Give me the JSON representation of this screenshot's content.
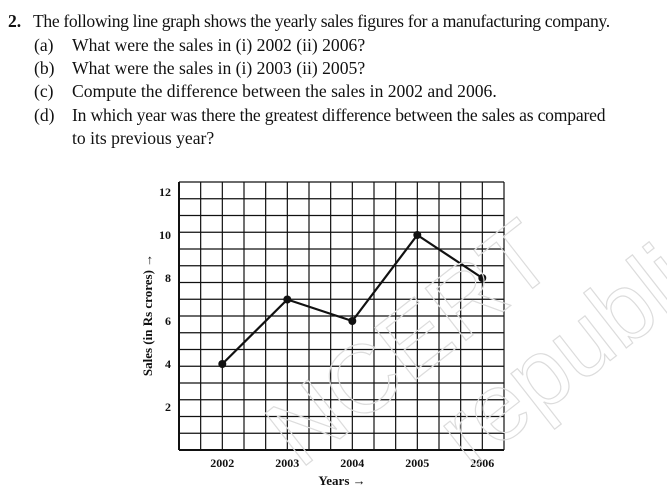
{
  "question": {
    "number": "2.",
    "text": "The following line graph shows the yearly sales figures for a manufacturing company.",
    "parts": [
      {
        "label": "(a)",
        "lines": [
          "What were the sales in (i) 2002   (ii) 2006?"
        ]
      },
      {
        "label": "(b)",
        "lines": [
          "What were the sales in (i) 2003   (ii) 2005?"
        ]
      },
      {
        "label": "(c)",
        "lines": [
          "Compute the difference between the sales in 2002 and 2006."
        ]
      },
      {
        "label": "(d)",
        "lines": [
          "In which year was there the greatest difference between the sales as compared",
          "to its previous year?"
        ]
      }
    ]
  },
  "watermark": "NCERT republished",
  "chart_data": {
    "type": "line",
    "x": [
      "2002",
      "2003",
      "2004",
      "2005",
      "2006"
    ],
    "series": [
      {
        "values": [
          4,
          7,
          6,
          10,
          8
        ]
      }
    ],
    "xlabel": "Years →",
    "ylabel": "Sales (in Rs crores) →",
    "y_ticks": [
      2,
      4,
      6,
      8,
      10,
      12
    ],
    "ylim": [
      0,
      12.5
    ],
    "grid": true
  }
}
